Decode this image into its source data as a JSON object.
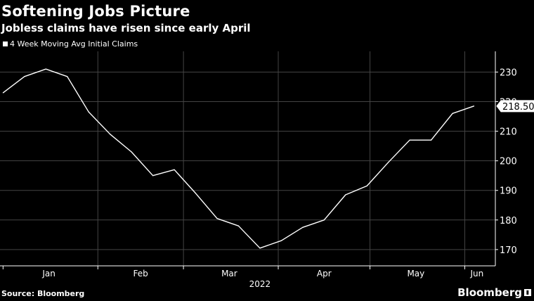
{
  "header": {
    "title": "Softening Jobs Picture",
    "subtitle": "Jobless claims have risen since early April"
  },
  "legend": {
    "label": "4 Week Moving Avg Initial Claims"
  },
  "footer": {
    "source": "Source: Bloomberg",
    "brand": "Bloomberg",
    "brand_mark_icon": "bloomberg-terminal-icon"
  },
  "colors": {
    "background": "#000000",
    "line": "#ffffff",
    "grid": "#444444"
  },
  "chart_data": {
    "type": "line",
    "title": "Softening Jobs Picture",
    "subtitle": "Jobless claims have risen since early April",
    "series": [
      {
        "name": "4 Week Moving Avg Initial Claims",
        "points": [
          {
            "x": "2022-01-01",
            "y": 223
          },
          {
            "x": "2022-01-08",
            "y": 228.5
          },
          {
            "x": "2022-01-15",
            "y": 231
          },
          {
            "x": "2022-01-22",
            "y": 228.5
          },
          {
            "x": "2022-01-29",
            "y": 216.5
          },
          {
            "x": "2022-02-05",
            "y": 209
          },
          {
            "x": "2022-02-12",
            "y": 203
          },
          {
            "x": "2022-02-19",
            "y": 195
          },
          {
            "x": "2022-02-26",
            "y": 197
          },
          {
            "x": "2022-03-05",
            "y": 189
          },
          {
            "x": "2022-03-12",
            "y": 180.5
          },
          {
            "x": "2022-03-19",
            "y": 178
          },
          {
            "x": "2022-03-26",
            "y": 170.5
          },
          {
            "x": "2022-04-02",
            "y": 173
          },
          {
            "x": "2022-04-09",
            "y": 177.5
          },
          {
            "x": "2022-04-16",
            "y": 180
          },
          {
            "x": "2022-04-23",
            "y": 188.5
          },
          {
            "x": "2022-04-30",
            "y": 191.5
          },
          {
            "x": "2022-05-07",
            "y": 199.5
          },
          {
            "x": "2022-05-14",
            "y": 207
          },
          {
            "x": "2022-05-21",
            "y": 207
          },
          {
            "x": "2022-05-28",
            "y": 216
          },
          {
            "x": "2022-06-04",
            "y": 218.5
          }
        ]
      }
    ],
    "x_tick_labels": [
      "Jan",
      "Feb",
      "Mar",
      "Apr",
      "May",
      "Jun"
    ],
    "x_year_label": "2022",
    "y_ticks": [
      170,
      180,
      190,
      200,
      210,
      220,
      230
    ],
    "ylim": [
      164.5,
      237
    ],
    "xlim": [
      "2021-12-31",
      "2022-06-11"
    ],
    "last_value_label": "218.500",
    "grid": true,
    "legend_position": "top-left",
    "y_axis_side": "right"
  }
}
